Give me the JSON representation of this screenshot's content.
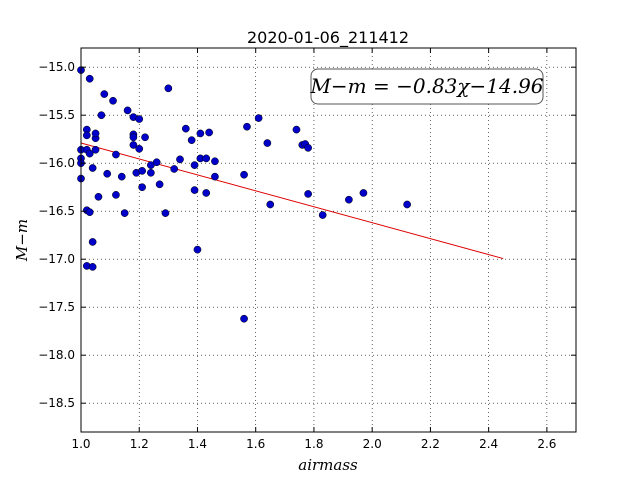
{
  "chart_data": {
    "type": "scatter",
    "title": "2020-01-06_211412",
    "xlabel": "airmass",
    "ylabel": "M−m",
    "xlim": [
      1.0,
      2.7
    ],
    "ylim": [
      -18.8,
      -14.8
    ],
    "y_inverted": true,
    "grid": true,
    "x_ticks": [
      1.0,
      1.2,
      1.4,
      1.6,
      1.8,
      2.0,
      2.2,
      2.4,
      2.6
    ],
    "x_tick_labels": [
      "1.0",
      "1.2",
      "1.4",
      "1.6",
      "1.8",
      "2.0",
      "2.2",
      "2.4",
      "2.6"
    ],
    "y_ticks": [
      -15.0,
      -15.5,
      -16.0,
      -16.5,
      -17.0,
      -17.5,
      -18.0,
      -18.5
    ],
    "y_tick_labels": [
      "−15.0",
      "−15.5",
      "−16.0",
      "−16.5",
      "−17.0",
      "−17.5",
      "−18.0",
      "−18.5"
    ],
    "annotation": "M−m = −0.83χ−14.96",
    "fit": {
      "slope": -0.83,
      "intercept": -14.96,
      "x_range": [
        1.0,
        2.45
      ],
      "color": "#dd0000"
    },
    "point_color": "#0000c8",
    "series": [
      {
        "points": [
          [
            1.0,
            -15.03
          ],
          [
            1.0,
            -15.86
          ],
          [
            1.0,
            -15.95
          ],
          [
            1.0,
            -16.0
          ],
          [
            1.0,
            -16.16
          ],
          [
            1.02,
            -15.65
          ],
          [
            1.02,
            -15.71
          ],
          [
            1.02,
            -15.86
          ],
          [
            1.02,
            -16.49
          ],
          [
            1.02,
            -17.07
          ],
          [
            1.03,
            -15.12
          ],
          [
            1.03,
            -15.9
          ],
          [
            1.03,
            -16.51
          ],
          [
            1.04,
            -16.82
          ],
          [
            1.04,
            -16.05
          ],
          [
            1.04,
            -17.08
          ],
          [
            1.05,
            -15.74
          ],
          [
            1.05,
            -15.69
          ],
          [
            1.05,
            -15.86
          ],
          [
            1.06,
            -16.35
          ],
          [
            1.07,
            -15.5
          ],
          [
            1.08,
            -15.28
          ],
          [
            1.09,
            -16.11
          ],
          [
            1.11,
            -15.35
          ],
          [
            1.12,
            -15.91
          ],
          [
            1.12,
            -16.33
          ],
          [
            1.14,
            -16.14
          ],
          [
            1.15,
            -16.52
          ],
          [
            1.16,
            -15.45
          ],
          [
            1.18,
            -15.7
          ],
          [
            1.18,
            -15.73
          ],
          [
            1.18,
            -15.52
          ],
          [
            1.18,
            -15.81
          ],
          [
            1.19,
            -16.1
          ],
          [
            1.2,
            -15.54
          ],
          [
            1.2,
            -15.85
          ],
          [
            1.21,
            -16.08
          ],
          [
            1.21,
            -16.25
          ],
          [
            1.22,
            -15.73
          ],
          [
            1.24,
            -16.02
          ],
          [
            1.24,
            -16.1
          ],
          [
            1.26,
            -15.99
          ],
          [
            1.27,
            -16.22
          ],
          [
            1.29,
            -16.52
          ],
          [
            1.3,
            -15.22
          ],
          [
            1.32,
            -16.06
          ],
          [
            1.34,
            -15.96
          ],
          [
            1.36,
            -15.64
          ],
          [
            1.38,
            -15.76
          ],
          [
            1.39,
            -16.02
          ],
          [
            1.39,
            -16.28
          ],
          [
            1.4,
            -16.9
          ],
          [
            1.41,
            -15.69
          ],
          [
            1.41,
            -15.95
          ],
          [
            1.43,
            -15.95
          ],
          [
            1.43,
            -16.31
          ],
          [
            1.44,
            -15.68
          ],
          [
            1.46,
            -15.98
          ],
          [
            1.46,
            -16.14
          ],
          [
            1.56,
            -16.12
          ],
          [
            1.56,
            -17.62
          ],
          [
            1.57,
            -15.62
          ],
          [
            1.61,
            -15.53
          ],
          [
            1.64,
            -15.79
          ],
          [
            1.65,
            -16.43
          ],
          [
            1.74,
            -15.65
          ],
          [
            1.76,
            -15.81
          ],
          [
            1.77,
            -15.8
          ],
          [
            1.78,
            -15.84
          ],
          [
            1.78,
            -16.32
          ],
          [
            1.83,
            -16.54
          ],
          [
            1.92,
            -16.38
          ],
          [
            1.97,
            -16.31
          ],
          [
            2.12,
            -16.43
          ]
        ]
      }
    ]
  }
}
